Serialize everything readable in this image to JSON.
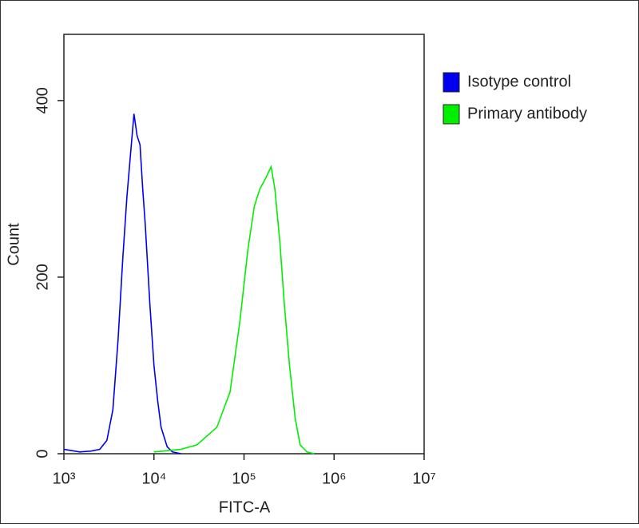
{
  "chart_data": {
    "type": "line",
    "x_label": "FITC-A",
    "y_label": "Count",
    "xscale": "log",
    "xlim": [
      1000,
      10000000
    ],
    "ylim": [
      0,
      475
    ],
    "xticks": [
      {
        "value": 1000,
        "label": "10³"
      },
      {
        "value": 10000,
        "label": "10⁴"
      },
      {
        "value": 100000,
        "label": "10⁵"
      },
      {
        "value": 1000000,
        "label": "10⁶"
      },
      {
        "value": 10000000,
        "label": "10⁷"
      }
    ],
    "yticks": [
      0,
      200,
      400
    ],
    "legend": "right",
    "series": [
      {
        "name": "Isotype control",
        "color": "#0000ee",
        "x": [
          1000,
          1500,
          2000,
          2500,
          3000,
          3500,
          4000,
          4500,
          5000,
          5500,
          6000,
          6500,
          7000,
          7500,
          8000,
          9000,
          10000,
          11000,
          12000,
          14000,
          16000,
          20000
        ],
        "values": [
          5,
          2,
          3,
          5,
          15,
          50,
          130,
          220,
          290,
          340,
          385,
          360,
          350,
          300,
          260,
          170,
          100,
          60,
          30,
          8,
          2,
          0
        ]
      },
      {
        "name": "Primary antibody",
        "color": "#00ee00",
        "x": [
          10000,
          20000,
          30000,
          50000,
          70000,
          90000,
          110000,
          130000,
          150000,
          170000,
          200000,
          220000,
          250000,
          280000,
          320000,
          370000,
          420000,
          500000,
          600000
        ],
        "values": [
          2,
          5,
          10,
          30,
          70,
          150,
          230,
          280,
          300,
          310,
          325,
          300,
          240,
          170,
          100,
          40,
          10,
          2,
          0
        ]
      }
    ]
  }
}
